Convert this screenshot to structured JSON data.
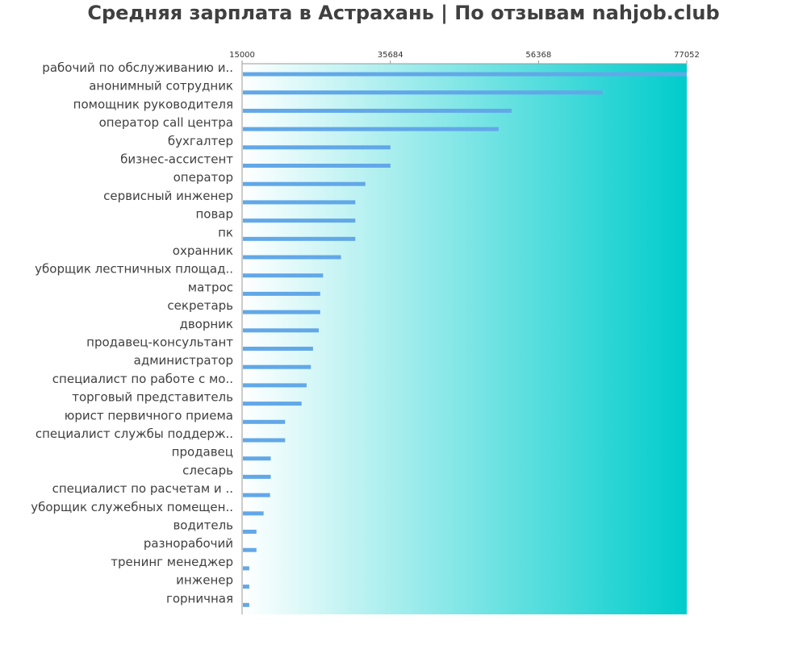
{
  "chart_data": {
    "type": "bar",
    "orientation": "horizontal",
    "title": "Средняя зарплата в Астрахань | По отзывам nahjob.club",
    "xlabel": "",
    "ylabel": "",
    "xlim": [
      15000,
      77052
    ],
    "x_ticks": [
      "15000",
      "35684",
      "56368",
      "77052"
    ],
    "grid": false,
    "legend": "none",
    "colors": {
      "bar": "#62a8e8",
      "background_start": "#ffffff",
      "background_end": "#00cccc",
      "axis": "#999999"
    },
    "categories": [
      "рабочий по обслуживанию и..",
      "анонимный сотрудник",
      "помощник руководителя",
      "оператор call центра",
      "бухгалтер",
      "бизнес-ассистент",
      "оператор",
      "сервисный инженер",
      "повар",
      "пк",
      "охранник",
      "уборщик лестничных площад..",
      "матрос",
      "секретарь",
      "дворник",
      "продавец-консультант",
      "администратор",
      "специалист по работе с мо..",
      "торговый представитель",
      "юрист первичного приема",
      "специалист службы поддерж..",
      "продавец",
      "слесарь",
      "специалист по расчетам и ..",
      "уборщик служебных помещен..",
      "водитель",
      "разнорабочий",
      "тренинг менеджер",
      "инженер",
      "горничная"
    ],
    "values": [
      77052,
      65300,
      52600,
      50800,
      35700,
      35700,
      32200,
      30800,
      30800,
      30800,
      28800,
      26300,
      25900,
      25900,
      25700,
      24900,
      24600,
      24000,
      23300,
      21000,
      21000,
      19000,
      19000,
      18900,
      18000,
      17000,
      17000,
      16000,
      16000,
      16000
    ]
  }
}
